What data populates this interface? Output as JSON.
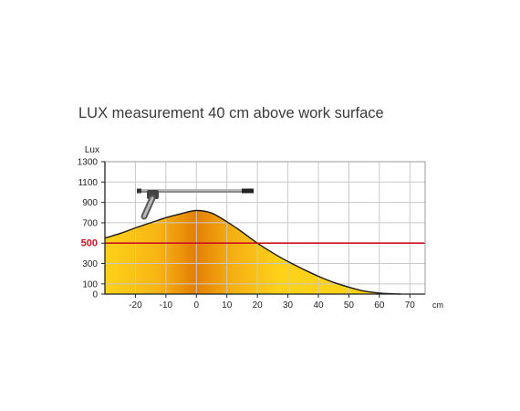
{
  "chart_data": {
    "type": "area",
    "title": "LUX measurement 40 cm above work surface",
    "ylabel": "Lux",
    "xlabel": "cm",
    "xlim": [
      -30,
      75
    ],
    "ylim": [
      0,
      1300
    ],
    "y_ticks": [
      0,
      100,
      300,
      500,
      700,
      900,
      1100,
      1300
    ],
    "x_ticks": [
      -20,
      -10,
      0,
      10,
      20,
      30,
      40,
      50,
      60,
      70
    ],
    "grid": true,
    "reference_line": {
      "value": 500,
      "color": "#cc1122"
    },
    "series": [
      {
        "x": [
          -30,
          -25,
          -20,
          -15,
          -10,
          -5,
          0,
          5,
          10,
          15,
          20,
          25,
          30,
          35,
          40,
          45,
          50,
          55,
          60,
          65,
          67
        ],
        "values": [
          550,
          595,
          650,
          700,
          750,
          790,
          820,
          795,
          710,
          610,
          500,
          405,
          320,
          245,
          175,
          115,
          68,
          30,
          10,
          2,
          0
        ]
      }
    ],
    "colors": {
      "fill_edge": "#ffd21a",
      "fill_center": "#e47f06",
      "curve": "#1a1a1a",
      "grid": "#c9c9c9",
      "axis": "#222222"
    },
    "illustration": "lamp-icon"
  }
}
